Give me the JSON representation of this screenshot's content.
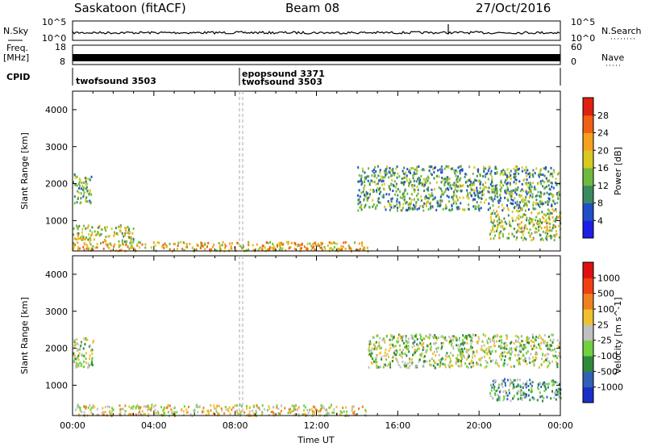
{
  "header": {
    "station": "Saskatoon (fitACF)",
    "beam": "Beam 08",
    "date": "27/Oct/2016"
  },
  "nsky_panel": {
    "left_label": "N.Sky",
    "right_label": "N.Search",
    "left_ticks": [
      "10^5",
      "10^0"
    ],
    "right_ticks": [
      "10^5",
      "10^0"
    ]
  },
  "freq_panel": {
    "left_label_1": "Freq.",
    "left_label_2": "[MHz]",
    "right_label": "Nave",
    "left_ticks": [
      "18",
      "8"
    ],
    "right_ticks": [
      "60",
      "0"
    ]
  },
  "cpid_panel": {
    "label": "CPID",
    "segments": [
      {
        "text": "twofsound 3503",
        "start_hour": 0
      },
      {
        "text": "epopsound 3371",
        "start_hour": 8.4
      },
      {
        "text": "twofsound 3503",
        "start_hour": 8.4
      }
    ]
  },
  "chart_data": [
    {
      "type": "heatmap",
      "name": "power",
      "xlabel": "",
      "ylabel": "Slant Range [km]",
      "xlim": [
        0,
        24
      ],
      "ylim": [
        180,
        4500
      ],
      "yticks": [
        "1000",
        "2000",
        "3000",
        "4000"
      ],
      "colorbar": {
        "label": "Power [dB]",
        "ticks": [
          "4",
          "8",
          "12",
          "16",
          "20",
          "24",
          "28"
        ],
        "colors": [
          "#1e1ee6",
          "#2050c8",
          "#3a8a60",
          "#70b840",
          "#d8c820",
          "#f5a020",
          "#f06010",
          "#e02010"
        ]
      },
      "regions": [
        {
          "x": [
            0,
            14.5
          ],
          "y": [
            200,
            450
          ],
          "level": 5
        },
        {
          "x": [
            0,
            3
          ],
          "y": [
            450,
            900
          ],
          "level": 4
        },
        {
          "x": [
            0,
            0.9
          ],
          "y": [
            1500,
            2300
          ],
          "level": 3
        },
        {
          "x": [
            14,
            24
          ],
          "y": [
            1300,
            2500
          ],
          "level": 3
        },
        {
          "x": [
            20.5,
            24
          ],
          "y": [
            500,
            1300
          ],
          "level": 4
        }
      ]
    },
    {
      "type": "heatmap",
      "name": "velocity",
      "xlabel": "Time UT",
      "ylabel": "Slant Range [km]",
      "xlim": [
        0,
        24
      ],
      "ylim": [
        180,
        4500
      ],
      "xticks": [
        "00:00",
        "04:00",
        "08:00",
        "12:00",
        "16:00",
        "20:00",
        "00:00"
      ],
      "yticks": [
        "1000",
        "2000",
        "3000",
        "4000"
      ],
      "colorbar": {
        "label": "Velocity [m s^-1]",
        "ticks": [
          "1000",
          "500",
          "100",
          "25",
          "-25",
          "-100",
          "-500",
          "-1000"
        ],
        "colors": [
          "#1830c8",
          "#3060b8",
          "#2e8a3a",
          "#70d040",
          "#c0c0c0",
          "#f0c030",
          "#f08020",
          "#f04010",
          "#e01010"
        ]
      },
      "regions": [
        {
          "x": [
            0,
            14.5
          ],
          "y": [
            200,
            500
          ],
          "level": 5
        },
        {
          "x": [
            0,
            1
          ],
          "y": [
            1500,
            2300
          ],
          "level": 4
        },
        {
          "x": [
            14.5,
            24
          ],
          "y": [
            1500,
            2400
          ],
          "level": 4
        },
        {
          "x": [
            20.5,
            24
          ],
          "y": [
            600,
            1200
          ],
          "level": 3
        }
      ]
    }
  ]
}
